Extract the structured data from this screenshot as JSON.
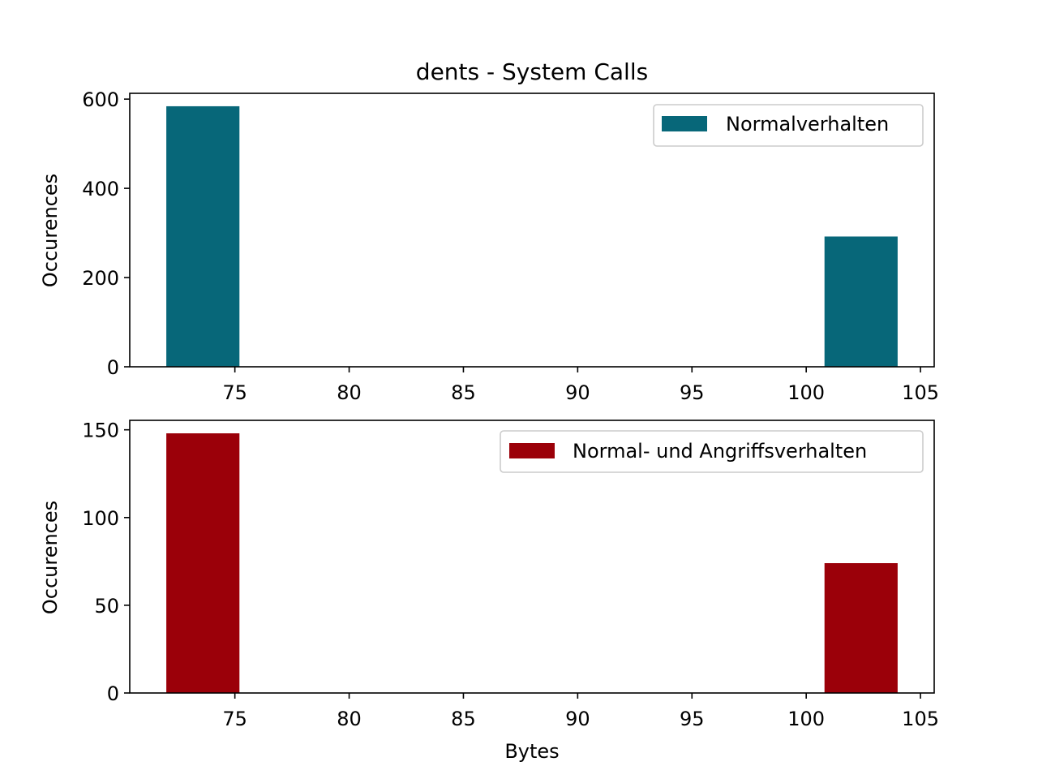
{
  "chart_data": [
    {
      "type": "bar",
      "title": "dents - System Calls",
      "xlabel": "",
      "ylabel": "Occurences",
      "xlim": [
        70.4,
        105.6
      ],
      "ylim": [
        0,
        613
      ],
      "xticks": [
        75,
        80,
        85,
        90,
        95,
        100,
        105
      ],
      "yticks": [
        0,
        200,
        400,
        600
      ],
      "series": [
        {
          "name": "Normalverhalten",
          "color": "#076779",
          "bars": [
            {
              "x0": 72,
              "x1": 75.2,
              "value": 584
            },
            {
              "x0": 100.8,
              "x1": 104,
              "value": 292
            }
          ]
        }
      ],
      "legend": "top-right",
      "grid": false
    },
    {
      "type": "bar",
      "title": "",
      "xlabel": "Bytes",
      "ylabel": "Occurences",
      "xlim": [
        70.4,
        105.6
      ],
      "ylim": [
        0,
        155.4
      ],
      "xticks": [
        75,
        80,
        85,
        90,
        95,
        100,
        105
      ],
      "yticks": [
        0,
        50,
        100,
        150
      ],
      "series": [
        {
          "name": "Normal- und Angriffsverhalten",
          "color": "#9b0009",
          "bars": [
            {
              "x0": 72,
              "x1": 75.2,
              "value": 148
            },
            {
              "x0": 100.8,
              "x1": 104,
              "value": 74
            }
          ]
        }
      ],
      "legend": "top-right",
      "grid": false
    }
  ]
}
